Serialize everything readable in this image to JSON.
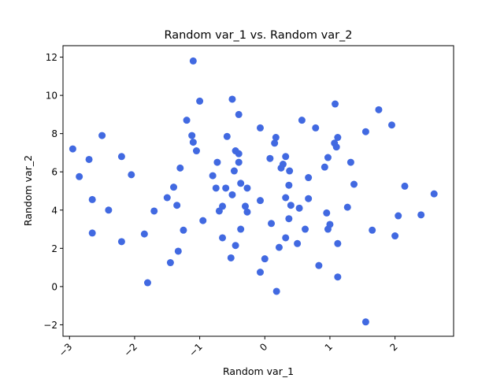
{
  "chart_data": {
    "type": "scatter",
    "title": "Random var_1 vs. Random var_2",
    "xlabel": "Random var_1",
    "ylabel": "Random var_2",
    "xlim": [
      -3.1,
      2.9
    ],
    "ylim": [
      -2.6,
      12.6
    ],
    "xticks": [
      -3,
      -2,
      -1,
      0,
      1,
      2
    ],
    "xtick_labels": [
      "−3",
      "−2",
      "−1",
      "0",
      "1",
      "2"
    ],
    "yticks": [
      -2,
      0,
      2,
      4,
      6,
      8,
      10,
      12
    ],
    "ytick_labels": [
      "−2",
      "0",
      "2",
      "4",
      "6",
      "8",
      "10",
      "12"
    ],
    "grid": false,
    "point_color": "#4169e1",
    "points": [
      [
        -2.95,
        7.2
      ],
      [
        -2.85,
        5.75
      ],
      [
        -2.7,
        6.65
      ],
      [
        -2.65,
        4.55
      ],
      [
        -2.65,
        2.8
      ],
      [
        -2.5,
        7.9
      ],
      [
        -2.4,
        4.0
      ],
      [
        -2.2,
        6.8
      ],
      [
        -2.2,
        2.35
      ],
      [
        -2.05,
        5.85
      ],
      [
        -1.85,
        2.75
      ],
      [
        -1.8,
        0.2
      ],
      [
        -1.7,
        3.95
      ],
      [
        -1.5,
        4.65
      ],
      [
        -1.45,
        1.25
      ],
      [
        -1.4,
        5.2
      ],
      [
        -1.35,
        4.25
      ],
      [
        -1.33,
        1.85
      ],
      [
        -1.3,
        6.2
      ],
      [
        -1.25,
        2.95
      ],
      [
        -1.2,
        8.7
      ],
      [
        -1.12,
        7.9
      ],
      [
        -1.1,
        7.55
      ],
      [
        -1.1,
        11.8
      ],
      [
        -1.05,
        7.1
      ],
      [
        -1.0,
        9.7
      ],
      [
        -0.95,
        3.45
      ],
      [
        -0.8,
        5.8
      ],
      [
        -0.75,
        5.15
      ],
      [
        -0.73,
        6.5
      ],
      [
        -0.7,
        3.95
      ],
      [
        -0.65,
        4.2
      ],
      [
        -0.65,
        2.55
      ],
      [
        -0.6,
        5.15
      ],
      [
        -0.58,
        7.85
      ],
      [
        -0.52,
        1.5
      ],
      [
        -0.5,
        4.8
      ],
      [
        -0.5,
        9.8
      ],
      [
        -0.47,
        6.05
      ],
      [
        -0.45,
        7.1
      ],
      [
        -0.45,
        2.15
      ],
      [
        -0.4,
        9.0
      ],
      [
        -0.4,
        6.95
      ],
      [
        -0.4,
        6.5
      ],
      [
        -0.37,
        5.4
      ],
      [
        -0.37,
        3.0
      ],
      [
        -0.3,
        4.2
      ],
      [
        -0.27,
        5.15
      ],
      [
        -0.27,
        3.9
      ],
      [
        -0.07,
        8.3
      ],
      [
        -0.07,
        4.5
      ],
      [
        -0.07,
        0.75
      ],
      [
        0.0,
        1.45
      ],
      [
        0.08,
        6.7
      ],
      [
        0.1,
        3.3
      ],
      [
        0.15,
        7.5
      ],
      [
        0.17,
        7.8
      ],
      [
        0.18,
        -0.25
      ],
      [
        0.22,
        2.05
      ],
      [
        0.25,
        6.2
      ],
      [
        0.28,
        6.4
      ],
      [
        0.32,
        6.8
      ],
      [
        0.32,
        4.65
      ],
      [
        0.32,
        2.55
      ],
      [
        0.37,
        5.3
      ],
      [
        0.37,
        3.55
      ],
      [
        0.38,
        6.05
      ],
      [
        0.4,
        4.25
      ],
      [
        0.5,
        2.25
      ],
      [
        0.53,
        4.1
      ],
      [
        0.57,
        8.7
      ],
      [
        0.62,
        3.0
      ],
      [
        0.67,
        5.7
      ],
      [
        0.67,
        4.6
      ],
      [
        0.78,
        8.3
      ],
      [
        0.83,
        1.1
      ],
      [
        0.92,
        6.25
      ],
      [
        0.95,
        3.85
      ],
      [
        0.97,
        6.75
      ],
      [
        0.97,
        3.0
      ],
      [
        1.0,
        3.25
      ],
      [
        1.07,
        7.5
      ],
      [
        1.08,
        9.55
      ],
      [
        1.1,
        7.3
      ],
      [
        1.12,
        7.8
      ],
      [
        1.12,
        2.25
      ],
      [
        1.12,
        0.5
      ],
      [
        1.27,
        4.15
      ],
      [
        1.32,
        6.5
      ],
      [
        1.37,
        5.35
      ],
      [
        1.55,
        8.1
      ],
      [
        1.55,
        -1.85
      ],
      [
        1.65,
        2.95
      ],
      [
        1.75,
        9.25
      ],
      [
        1.95,
        8.45
      ],
      [
        2.0,
        2.65
      ],
      [
        2.05,
        3.7
      ],
      [
        2.15,
        5.25
      ],
      [
        2.4,
        3.75
      ],
      [
        2.6,
        4.85
      ]
    ]
  }
}
